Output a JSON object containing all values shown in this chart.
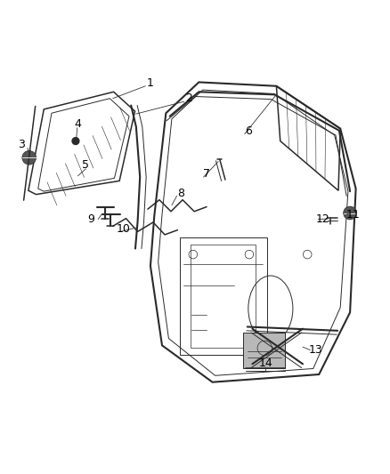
{
  "background_color": "#ffffff",
  "line_color": "#2a2a2a",
  "fig_width": 4.38,
  "fig_height": 5.33,
  "dpi": 100
}
